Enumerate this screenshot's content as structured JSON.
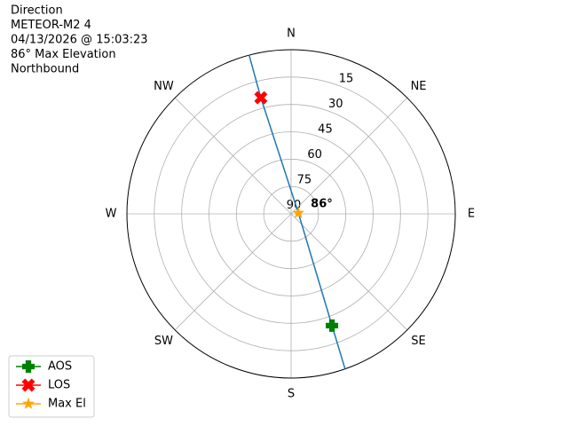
{
  "chart_data": {
    "type": "polar",
    "title_lines": [
      "Direction",
      "METEOR-M2 4",
      "04/13/2026 @ 15:03:23",
      "86° Max Elevation",
      "Northbound"
    ],
    "rlim": [
      90,
      0
    ],
    "rticks": [
      15,
      30,
      45,
      60,
      75,
      90
    ],
    "thetaticks": [
      {
        "value": 0,
        "label": "N"
      },
      {
        "value": 45,
        "label": "NE"
      },
      {
        "value": 90,
        "label": "E"
      },
      {
        "value": 135,
        "label": "SE"
      },
      {
        "value": 180,
        "label": "S"
      },
      {
        "value": 225,
        "label": "SW"
      },
      {
        "value": 270,
        "label": "W"
      },
      {
        "value": 315,
        "label": "NW"
      }
    ],
    "grid": true,
    "track": {
      "color": "#1f77b4",
      "az": [
        345.2,
        345.4,
        83,
        159.9,
        160.8
      ],
      "el": [
        0,
        24.2,
        86,
        24.8,
        0
      ]
    },
    "series": [
      {
        "name": "AOS",
        "color": "green",
        "marker": "plus",
        "az": [
          159.9
        ],
        "el": [
          24.8
        ]
      },
      {
        "name": "LOS",
        "color": "red",
        "marker": "x",
        "az": [
          345.4
        ],
        "el": [
          24.2
        ]
      },
      {
        "name": "Max El",
        "color": "orange",
        "marker": "star",
        "az": [
          83
        ],
        "el": [
          86
        ],
        "value_labels": [
          "86°"
        ]
      }
    ],
    "legend": "lower left"
  }
}
